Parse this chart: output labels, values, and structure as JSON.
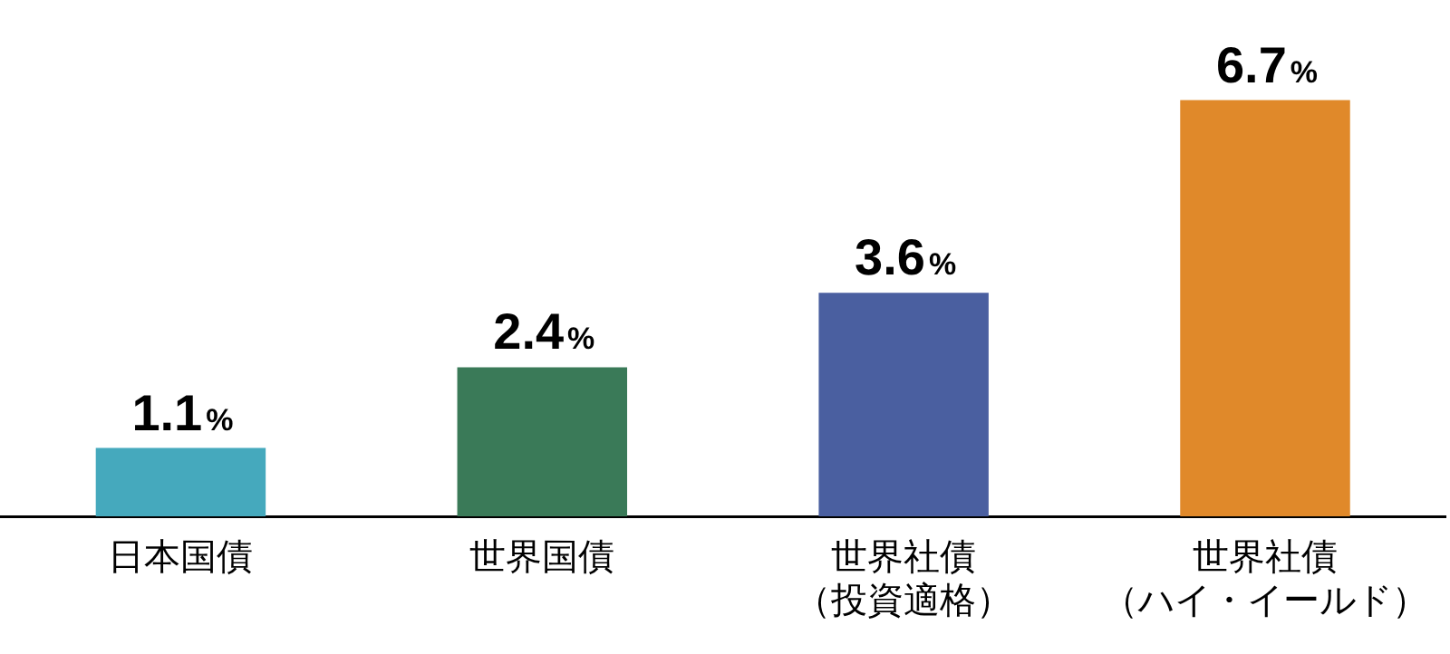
{
  "chart_data": {
    "type": "bar",
    "categories": [
      "日本国債",
      "世界国債",
      "世界社債（投資適格）",
      "世界社債（ハイ・イールド）"
    ],
    "values": [
      1.1,
      2.4,
      3.6,
      6.7
    ],
    "colors": [
      "#45a9bd",
      "#3a7a58",
      "#4a5fa0",
      "#e0892a"
    ],
    "value_labels": [
      "1.1%",
      "2.4%",
      "3.6%",
      "6.7%"
    ],
    "grid": false,
    "legend": false
  }
}
